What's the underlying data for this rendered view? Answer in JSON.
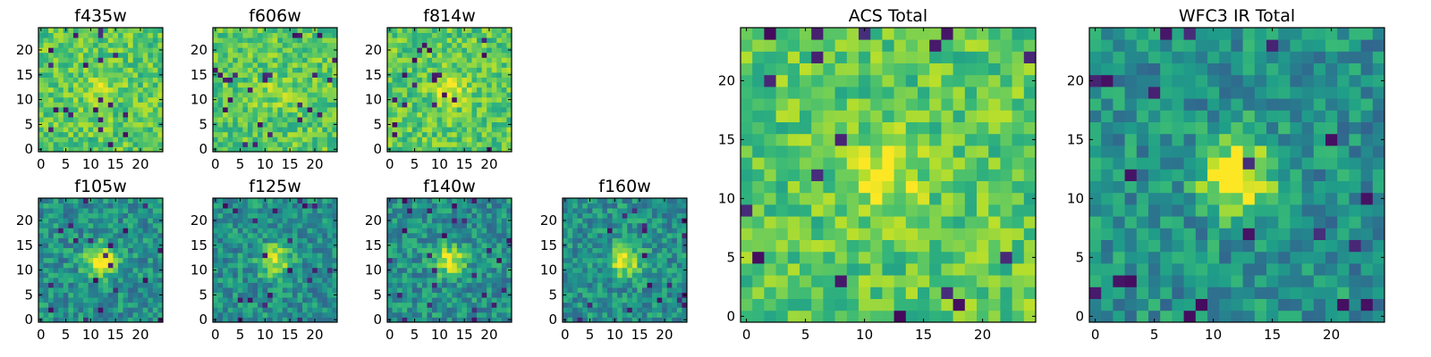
{
  "chart_data": [
    {
      "type": "heatmap",
      "title": "f435w",
      "xticks": [
        0,
        5,
        10,
        15,
        20
      ],
      "yticks": [
        0,
        5,
        10,
        15,
        20
      ],
      "xlim": [
        0,
        25
      ],
      "ylim": [
        0,
        25
      ],
      "grid_size": 25,
      "colormap": "viridis",
      "source_peak": 0.15,
      "seed": 11
    },
    {
      "type": "heatmap",
      "title": "f606w",
      "xticks": [
        0,
        5,
        10,
        15,
        20
      ],
      "yticks": [
        0,
        5,
        10,
        15,
        20
      ],
      "xlim": [
        0,
        25
      ],
      "ylim": [
        0,
        25
      ],
      "grid_size": 25,
      "colormap": "viridis",
      "source_peak": 0.12,
      "seed": 23
    },
    {
      "type": "heatmap",
      "title": "f814w",
      "xticks": [
        0,
        5,
        10,
        15,
        20
      ],
      "yticks": [
        0,
        5,
        10,
        15,
        20
      ],
      "xlim": [
        0,
        25
      ],
      "ylim": [
        0,
        25
      ],
      "grid_size": 25,
      "colormap": "viridis",
      "source_peak": 0.25,
      "seed": 37
    },
    {
      "type": "heatmap",
      "title": "f105w",
      "xticks": [
        0,
        5,
        10,
        15,
        20
      ],
      "yticks": [
        0,
        5,
        10,
        15,
        20
      ],
      "xlim": [
        0,
        25
      ],
      "ylim": [
        0,
        25
      ],
      "grid_size": 25,
      "colormap": "viridis",
      "source_peak": 0.55,
      "seed": 41
    },
    {
      "type": "heatmap",
      "title": "f125w",
      "xticks": [
        0,
        5,
        10,
        15,
        20
      ],
      "yticks": [
        0,
        5,
        10,
        15,
        20
      ],
      "xlim": [
        0,
        25
      ],
      "ylim": [
        0,
        25
      ],
      "grid_size": 25,
      "colormap": "viridis",
      "source_peak": 0.45,
      "seed": 53
    },
    {
      "type": "heatmap",
      "title": "f140w",
      "xticks": [
        0,
        5,
        10,
        15,
        20
      ],
      "yticks": [
        0,
        5,
        10,
        15,
        20
      ],
      "xlim": [
        0,
        25
      ],
      "ylim": [
        0,
        25
      ],
      "grid_size": 25,
      "colormap": "viridis",
      "source_peak": 0.45,
      "seed": 67
    },
    {
      "type": "heatmap",
      "title": "f160w",
      "xticks": [
        0,
        5,
        10,
        15,
        20
      ],
      "yticks": [
        0,
        5,
        10,
        15,
        20
      ],
      "xlim": [
        0,
        25
      ],
      "ylim": [
        0,
        25
      ],
      "grid_size": 25,
      "colormap": "viridis",
      "source_peak": 0.5,
      "seed": 79
    },
    {
      "type": "heatmap",
      "title": "ACS Total",
      "xticks": [
        0,
        5,
        10,
        15,
        20
      ],
      "yticks": [
        0,
        5,
        10,
        15,
        20
      ],
      "xlim": [
        0,
        25
      ],
      "ylim": [
        0,
        25
      ],
      "grid_size": 25,
      "colormap": "viridis",
      "source_peak": 0.22,
      "seed": 97
    },
    {
      "type": "heatmap",
      "title": "WFC3 IR Total",
      "xticks": [
        0,
        5,
        10,
        15,
        20
      ],
      "yticks": [
        0,
        5,
        10,
        15,
        20
      ],
      "xlim": [
        0,
        25
      ],
      "ylim": [
        0,
        25
      ],
      "grid_size": 25,
      "colormap": "viridis",
      "source_peak": 0.6,
      "seed": 113
    }
  ]
}
